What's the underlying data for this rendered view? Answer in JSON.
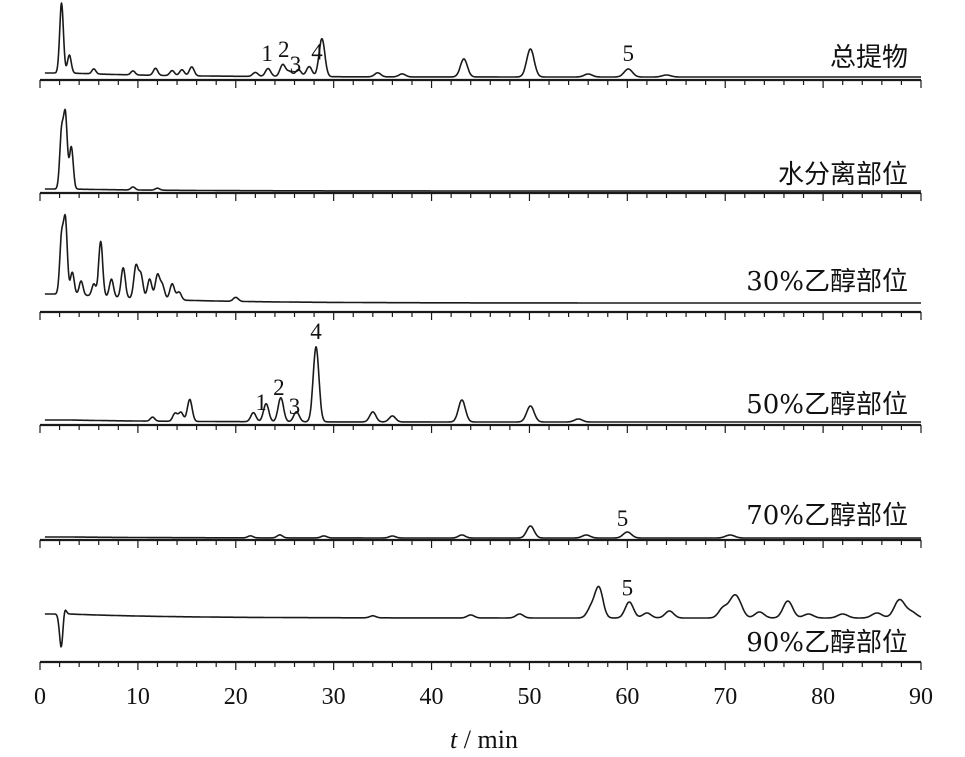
{
  "chart_data": {
    "type": "line",
    "x_unit": "min",
    "xlabel_var": "t",
    "xlabel_unit": " / min",
    "xlim": [
      0,
      90
    ],
    "x_ticks": [
      "0",
      "10",
      "20",
      "30",
      "40",
      "50",
      "60",
      "70",
      "80",
      "90"
    ],
    "series": [
      {
        "name": "总提物",
        "peaks": [
          [
            2.2,
            70
          ],
          [
            3.0,
            18
          ],
          [
            5.5,
            5
          ],
          [
            9.5,
            4
          ],
          [
            11.8,
            7
          ],
          [
            13.5,
            5
          ],
          [
            14.5,
            6
          ],
          [
            15.5,
            9
          ],
          [
            22.0,
            4
          ],
          [
            23.3,
            8
          ],
          [
            24.8,
            12
          ],
          [
            25.5,
            5
          ],
          [
            26.4,
            7
          ],
          [
            27.5,
            10
          ],
          [
            28.8,
            38
          ],
          [
            34.5,
            4
          ],
          [
            37.0,
            3
          ],
          [
            43.3,
            18
          ],
          [
            50.1,
            28
          ],
          [
            56.0,
            3
          ],
          [
            60.1,
            8
          ],
          [
            64.0,
            2
          ]
        ],
        "drift": 4,
        "annotations": [
          {
            "label": "1",
            "x": 23.2
          },
          {
            "label": "2",
            "x": 24.9
          },
          {
            "label": "3",
            "x": 26.1
          },
          {
            "label": "4",
            "x": 28.3
          },
          {
            "label": "5",
            "x": 60.1
          }
        ]
      },
      {
        "name": "水分离部位",
        "peaks": [
          [
            2.2,
            55
          ],
          [
            2.6,
            72
          ],
          [
            3.2,
            42
          ],
          [
            9.5,
            3
          ],
          [
            12.0,
            2
          ]
        ],
        "drift": 2,
        "annotations": []
      },
      {
        "name": "30%乙醇部位",
        "peaks": [
          [
            2.2,
            55
          ],
          [
            2.6,
            72
          ],
          [
            3.3,
            22
          ],
          [
            4.2,
            14
          ],
          [
            5.5,
            12
          ],
          [
            6.2,
            55
          ],
          [
            7.3,
            18
          ],
          [
            8.5,
            30
          ],
          [
            9.8,
            32
          ],
          [
            10.3,
            24
          ],
          [
            11.2,
            20
          ],
          [
            12.0,
            24
          ],
          [
            12.5,
            14
          ],
          [
            13.5,
            16
          ],
          [
            14.2,
            8
          ],
          [
            20.0,
            4
          ]
        ],
        "drift": 9,
        "annotations": []
      },
      {
        "name": "50%乙醇部位",
        "peaks": [
          [
            11.5,
            4
          ],
          [
            13.8,
            8
          ],
          [
            14.4,
            9
          ],
          [
            15.3,
            22
          ],
          [
            21.8,
            9
          ],
          [
            23.1,
            18
          ],
          [
            24.6,
            24
          ],
          [
            26.2,
            10
          ],
          [
            28.2,
            75
          ],
          [
            34.0,
            10
          ],
          [
            36.0,
            6
          ],
          [
            43.1,
            22
          ],
          [
            50.1,
            16
          ],
          [
            55.0,
            3
          ]
        ],
        "drift": 2,
        "annotations": [
          {
            "label": "1",
            "x": 22.6
          },
          {
            "label": "2",
            "x": 24.4
          },
          {
            "label": "3",
            "x": 26.0
          },
          {
            "label": "4",
            "x": 28.2
          }
        ]
      },
      {
        "name": "70%乙醇部位",
        "peaks": [
          [
            21.5,
            2
          ],
          [
            24.5,
            3
          ],
          [
            29.0,
            2
          ],
          [
            36.0,
            2
          ],
          [
            43.1,
            3
          ],
          [
            50.1,
            12
          ],
          [
            55.8,
            3
          ],
          [
            60.0,
            6
          ],
          [
            70.5,
            3
          ]
        ],
        "drift": 1,
        "annotations": [
          {
            "label": "5",
            "x": 59.5
          }
        ]
      },
      {
        "name": "90%乙醇部位",
        "peaks": [
          [
            2.2,
            -40
          ],
          [
            2.4,
            14
          ],
          [
            34.0,
            2
          ],
          [
            44.0,
            3
          ],
          [
            49.0,
            4
          ],
          [
            56.3,
            10
          ],
          [
            57.1,
            30
          ],
          [
            60.2,
            16
          ],
          [
            62.0,
            5
          ],
          [
            64.3,
            7
          ],
          [
            69.8,
            10
          ],
          [
            70.8,
            16
          ],
          [
            71.4,
            12
          ],
          [
            73.5,
            6
          ],
          [
            76.4,
            17
          ],
          [
            78.5,
            4
          ],
          [
            82.0,
            4
          ],
          [
            85.5,
            5
          ],
          [
            87.8,
            18
          ],
          [
            89.0,
            6
          ]
        ],
        "drift": 4,
        "annotations": [
          {
            "label": "5",
            "x": 60.0
          }
        ]
      }
    ],
    "grid": false,
    "legend": "none"
  }
}
